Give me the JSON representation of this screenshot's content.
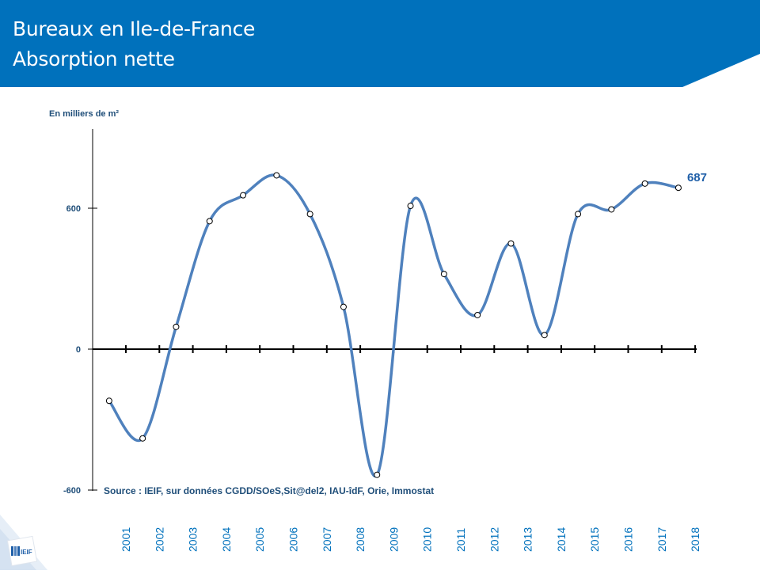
{
  "header": {
    "title_line1": "Bureaux en Ile-de-France",
    "title_line2": "Absorption nette",
    "band_color": "#0071bc"
  },
  "logo": {
    "text": "IEIF"
  },
  "chart_data": {
    "type": "line",
    "title": "Bureaux en Ile-de-France — Absorption nette",
    "ylabel": "En milliers de m²",
    "source": "Source : IEIF, sur données CGDD/SOeS,Sit@del2, IAU-îdF, Orie, Immostat",
    "ylim": [
      -600,
      1000
    ],
    "yticks": [
      "600",
      "0",
      "-600"
    ],
    "ytick_values": [
      600,
      0,
      -600
    ],
    "categories": [
      "2001",
      "2002",
      "2003",
      "2004",
      "2005",
      "2006",
      "2007",
      "2008",
      "2009",
      "2010",
      "2011",
      "2012",
      "2013",
      "2014",
      "2015",
      "2016",
      "2017",
      "2018"
    ],
    "x": [
      2000.5,
      2001.5,
      2002.5,
      2003.5,
      2004.5,
      2005.5,
      2006.5,
      2007.5,
      2008.5,
      2009.5,
      2010.5,
      2011.5,
      2012.5,
      2013.5,
      2014.5,
      2015.5,
      2016.5,
      2017.5
    ],
    "values": [
      -220,
      -380,
      95,
      545,
      655,
      740,
      575,
      180,
      -535,
      610,
      320,
      145,
      450,
      60,
      575,
      595,
      705,
      687
    ],
    "last_label": "687",
    "line_color": "#4f81bd",
    "grid": false
  }
}
